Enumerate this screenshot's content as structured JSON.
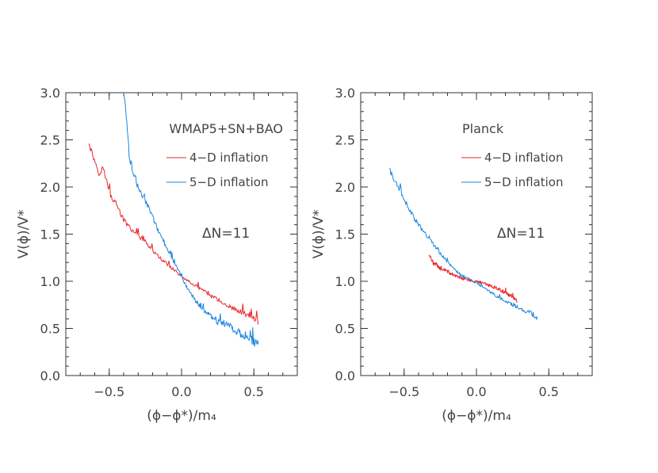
{
  "chart_data": [
    {
      "type": "line",
      "annotation": "WMAP5+SN+BAO",
      "delta_label": "ΔN=11",
      "xlabel": "(ϕ−ϕ*)/m₄",
      "ylabel": "V(ϕ)/V*",
      "xlim": [
        -0.8,
        0.8
      ],
      "ylim": [
        0.0,
        3.0
      ],
      "xticks": [
        -0.5,
        0.0,
        0.5
      ],
      "xtick_labels": [
        "−0.5",
        "0.0",
        "0.5"
      ],
      "yticks": [
        0.0,
        0.5,
        1.0,
        1.5,
        2.0,
        2.5,
        3.0
      ],
      "ytick_labels": [
        "0.0",
        "0.5",
        "1.0",
        "1.5",
        "2.0",
        "2.5",
        "3.0"
      ],
      "legend_placement": "top-right",
      "series": [
        {
          "name": "4−D inflation",
          "color": "#e8262a",
          "x": [
            -0.64,
            -0.57,
            -0.54,
            -0.5,
            -0.45,
            -0.4,
            -0.35,
            -0.3,
            -0.25,
            -0.2,
            -0.15,
            -0.1,
            -0.05,
            0.0,
            0.1,
            0.2,
            0.3,
            0.4,
            0.5,
            0.53
          ],
          "y": [
            2.45,
            2.15,
            2.2,
            1.95,
            1.8,
            1.65,
            1.55,
            1.48,
            1.42,
            1.32,
            1.25,
            1.18,
            1.12,
            1.05,
            0.95,
            0.85,
            0.76,
            0.68,
            0.6,
            0.57
          ],
          "noise": 0.07
        },
        {
          "name": "5−D inflation",
          "color": "#1b84e0",
          "x": [
            -0.4,
            -0.38,
            -0.36,
            -0.33,
            -0.3,
            -0.25,
            -0.2,
            -0.15,
            -0.1,
            -0.05,
            0.0,
            0.05,
            0.1,
            0.15,
            0.2,
            0.25,
            0.3,
            0.35,
            0.4,
            0.45,
            0.5,
            0.53
          ],
          "y": [
            3.05,
            2.7,
            2.3,
            2.15,
            2.0,
            1.85,
            1.68,
            1.5,
            1.35,
            1.2,
            1.05,
            0.9,
            0.78,
            0.7,
            0.63,
            0.57,
            0.55,
            0.5,
            0.45,
            0.41,
            0.36,
            0.33
          ],
          "noise": 0.1
        }
      ]
    },
    {
      "type": "line",
      "annotation": "Planck",
      "delta_label": "ΔN=11",
      "xlabel": "(ϕ−ϕ*)/m₄",
      "ylabel": "V(ϕ)/V*",
      "xlim": [
        -0.8,
        0.8
      ],
      "ylim": [
        0.0,
        3.0
      ],
      "xticks": [
        -0.5,
        0.0,
        0.5
      ],
      "xtick_labels": [
        "−0.5",
        "0.0",
        "0.5"
      ],
      "yticks": [
        0.0,
        0.5,
        1.0,
        1.5,
        2.0,
        2.5,
        3.0
      ],
      "ytick_labels": [
        "0.0",
        "0.5",
        "1.0",
        "1.5",
        "2.0",
        "2.5",
        "3.0"
      ],
      "legend_placement": "top-right",
      "series": [
        {
          "name": "4−D inflation",
          "color": "#e8262a",
          "x": [
            -0.33,
            -0.3,
            -0.25,
            -0.2,
            -0.15,
            -0.1,
            -0.05,
            0.0,
            0.05,
            0.1,
            0.15,
            0.2,
            0.25,
            0.28
          ],
          "y": [
            1.28,
            1.2,
            1.14,
            1.1,
            1.06,
            1.03,
            1.01,
            1.0,
            0.98,
            0.95,
            0.92,
            0.88,
            0.83,
            0.79
          ],
          "noise": 0.05
        },
        {
          "name": "5−D inflation",
          "color": "#1b84e0",
          "x": [
            -0.6,
            -0.55,
            -0.5,
            -0.45,
            -0.4,
            -0.35,
            -0.3,
            -0.25,
            -0.2,
            -0.15,
            -0.1,
            -0.05,
            0.0,
            0.05,
            0.1,
            0.15,
            0.2,
            0.25,
            0.3,
            0.35,
            0.4,
            0.42
          ],
          "y": [
            2.18,
            2.02,
            1.88,
            1.72,
            1.6,
            1.5,
            1.4,
            1.3,
            1.2,
            1.12,
            1.06,
            1.02,
            0.98,
            0.93,
            0.88,
            0.83,
            0.79,
            0.75,
            0.71,
            0.68,
            0.63,
            0.6
          ],
          "noise": 0.06
        }
      ]
    }
  ]
}
